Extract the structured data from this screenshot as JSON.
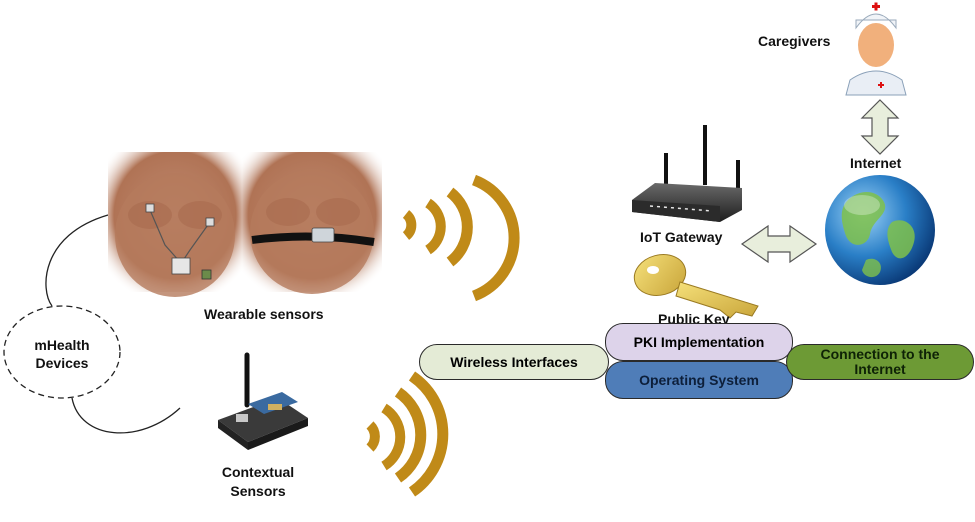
{
  "labels": {
    "caregivers": "Caregivers",
    "internet": "Internet",
    "iot_gateway": "IoT Gateway",
    "public_key": "Public Key",
    "wearable_sensors": "Wearable sensors",
    "mhealth_devices": "mHealth Devices",
    "contextual_sensors": "Contextual Sensors"
  },
  "stack": {
    "wireless_interfaces": "Wireless Interfaces",
    "pki_implementation": "PKI Implementation",
    "operating_system": "Operating System",
    "connection_to_internet": "Connection to the Internet"
  },
  "colors": {
    "wireless_interfaces": "#e4ebd6",
    "pki_implementation": "#ddd3ea",
    "operating_system": "#4f7db8",
    "connection_to_internet": "#6d9a35",
    "signal_waves": "#c08a18",
    "double_arrow": "#e8eedc"
  },
  "icons": [
    "caregiver-icon",
    "globe-icon",
    "router-icon",
    "key-icon",
    "sensor-board-icon",
    "signal-wave-icon",
    "double-arrow-icon"
  ]
}
